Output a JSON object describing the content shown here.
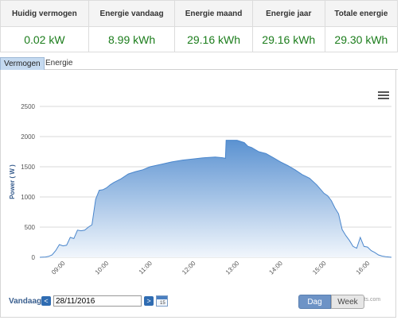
{
  "stats": {
    "headers": [
      "Huidig vermogen",
      "Energie vandaag",
      "Energie maand",
      "Energie jaar",
      "Totale energie"
    ],
    "values": [
      "0.02 kW",
      "8.99 kWh",
      "29.16 kWh",
      "29.16 kWh",
      "29.30 kWh"
    ]
  },
  "tabs": [
    "Vermogen",
    "Energie"
  ],
  "active_tab": "Vermogen",
  "controls": {
    "date_label": "Vandaag",
    "date_value": "28/11/2016",
    "prev_symbol": "<",
    "next_symbol": ">",
    "calendar_day": "15",
    "view_buttons": [
      "Dag",
      "Week"
    ],
    "active_view": "Dag",
    "credits": "charts.com"
  },
  "icons": [
    "menu-icon",
    "chevron-left-icon",
    "chevron-right-icon",
    "calendar-icon"
  ],
  "colors": {
    "values": "#1c7d1c",
    "area_top": "#5b92d1",
    "area_bottom": "#f1f6fc",
    "line": "#4a86cc",
    "accent": "#2f6cb2"
  },
  "chart_data": {
    "type": "area",
    "title": "",
    "xlabel": "",
    "ylabel": "Power ( W )",
    "x_ticks": [
      "09:00",
      "10:00",
      "11:00",
      "12:00",
      "13:00",
      "14:00",
      "15:00",
      "16:00"
    ],
    "y_ticks": [
      0,
      500,
      1000,
      1500,
      2000,
      2500
    ],
    "ylim": [
      0,
      2500
    ],
    "xlim": [
      "08:28",
      "16:33"
    ],
    "grid": true,
    "series": [
      {
        "x": [
          "08:28",
          "08:36",
          "08:40",
          "08:45",
          "08:50",
          "08:55",
          "09:00",
          "09:05",
          "09:10",
          "09:15",
          "09:20",
          "09:25",
          "09:30",
          "09:35",
          "09:40",
          "09:45",
          "09:50",
          "09:55",
          "10:00",
          "10:05",
          "10:10",
          "10:20",
          "10:30",
          "10:40",
          "10:50",
          "11:00",
          "11:15",
          "11:30",
          "11:45",
          "12:00",
          "12:15",
          "12:30",
          "12:40",
          "12:44",
          "12:45",
          "12:50",
          "13:00",
          "13:10",
          "13:15",
          "13:20",
          "13:30",
          "13:40",
          "13:50",
          "14:00",
          "14:10",
          "14:20",
          "14:30",
          "14:40",
          "14:50",
          "15:00",
          "15:05",
          "15:10",
          "15:15",
          "15:20",
          "15:25",
          "15:30",
          "15:35",
          "15:40",
          "15:45",
          "15:50",
          "15:55",
          "16:00",
          "16:05",
          "16:10",
          "16:15",
          "16:20",
          "16:25",
          "16:33"
        ],
        "y": [
          0,
          5,
          15,
          40,
          110,
          210,
          190,
          200,
          330,
          310,
          450,
          440,
          450,
          500,
          540,
          960,
          1110,
          1120,
          1150,
          1200,
          1240,
          1300,
          1380,
          1420,
          1450,
          1500,
          1540,
          1580,
          1610,
          1630,
          1650,
          1660,
          1650,
          1640,
          1940,
          1940,
          1940,
          1900,
          1840,
          1820,
          1750,
          1720,
          1650,
          1580,
          1520,
          1450,
          1370,
          1310,
          1200,
          1060,
          1020,
          940,
          820,
          720,
          460,
          360,
          280,
          180,
          150,
          330,
          180,
          170,
          110,
          80,
          40,
          20,
          10,
          0
        ]
      }
    ]
  }
}
